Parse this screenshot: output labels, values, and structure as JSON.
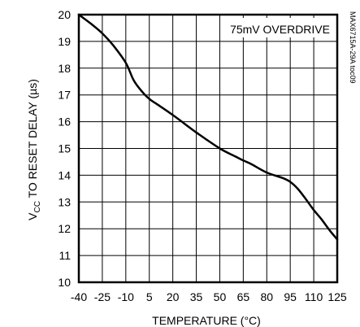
{
  "chart_data": {
    "type": "line",
    "xlabel": "TEMPERATURE (°C)",
    "ylabel_main": "V",
    "ylabel_sub": "CC",
    "ylabel_rest": " TO RESET DELAY (µs)",
    "annotation": "75mV OVERDRIVE",
    "side_label": "MAX6715A-29A toc09",
    "xlim": [
      -40,
      125
    ],
    "ylim": [
      10,
      20
    ],
    "x_ticks": [
      -40,
      -25,
      -10,
      5,
      20,
      35,
      50,
      65,
      80,
      95,
      110,
      125
    ],
    "y_ticks": [
      10,
      11,
      12,
      13,
      14,
      15,
      16,
      17,
      18,
      19,
      20
    ],
    "grid": true,
    "series": [
      {
        "color": "#000000",
        "x": [
          -40,
          -32,
          -25,
          -18,
          -10,
          -5,
          0,
          5,
          10,
          20,
          35,
          50,
          60,
          65,
          70,
          80,
          90,
          95,
          100,
          105,
          110,
          115,
          120,
          125
        ],
        "y": [
          20.0,
          19.65,
          19.3,
          18.85,
          18.2,
          17.55,
          17.15,
          16.85,
          16.65,
          16.25,
          15.6,
          15.0,
          14.7,
          14.55,
          14.42,
          14.1,
          13.9,
          13.75,
          13.48,
          13.1,
          12.7,
          12.35,
          11.95,
          11.6
        ]
      }
    ]
  }
}
